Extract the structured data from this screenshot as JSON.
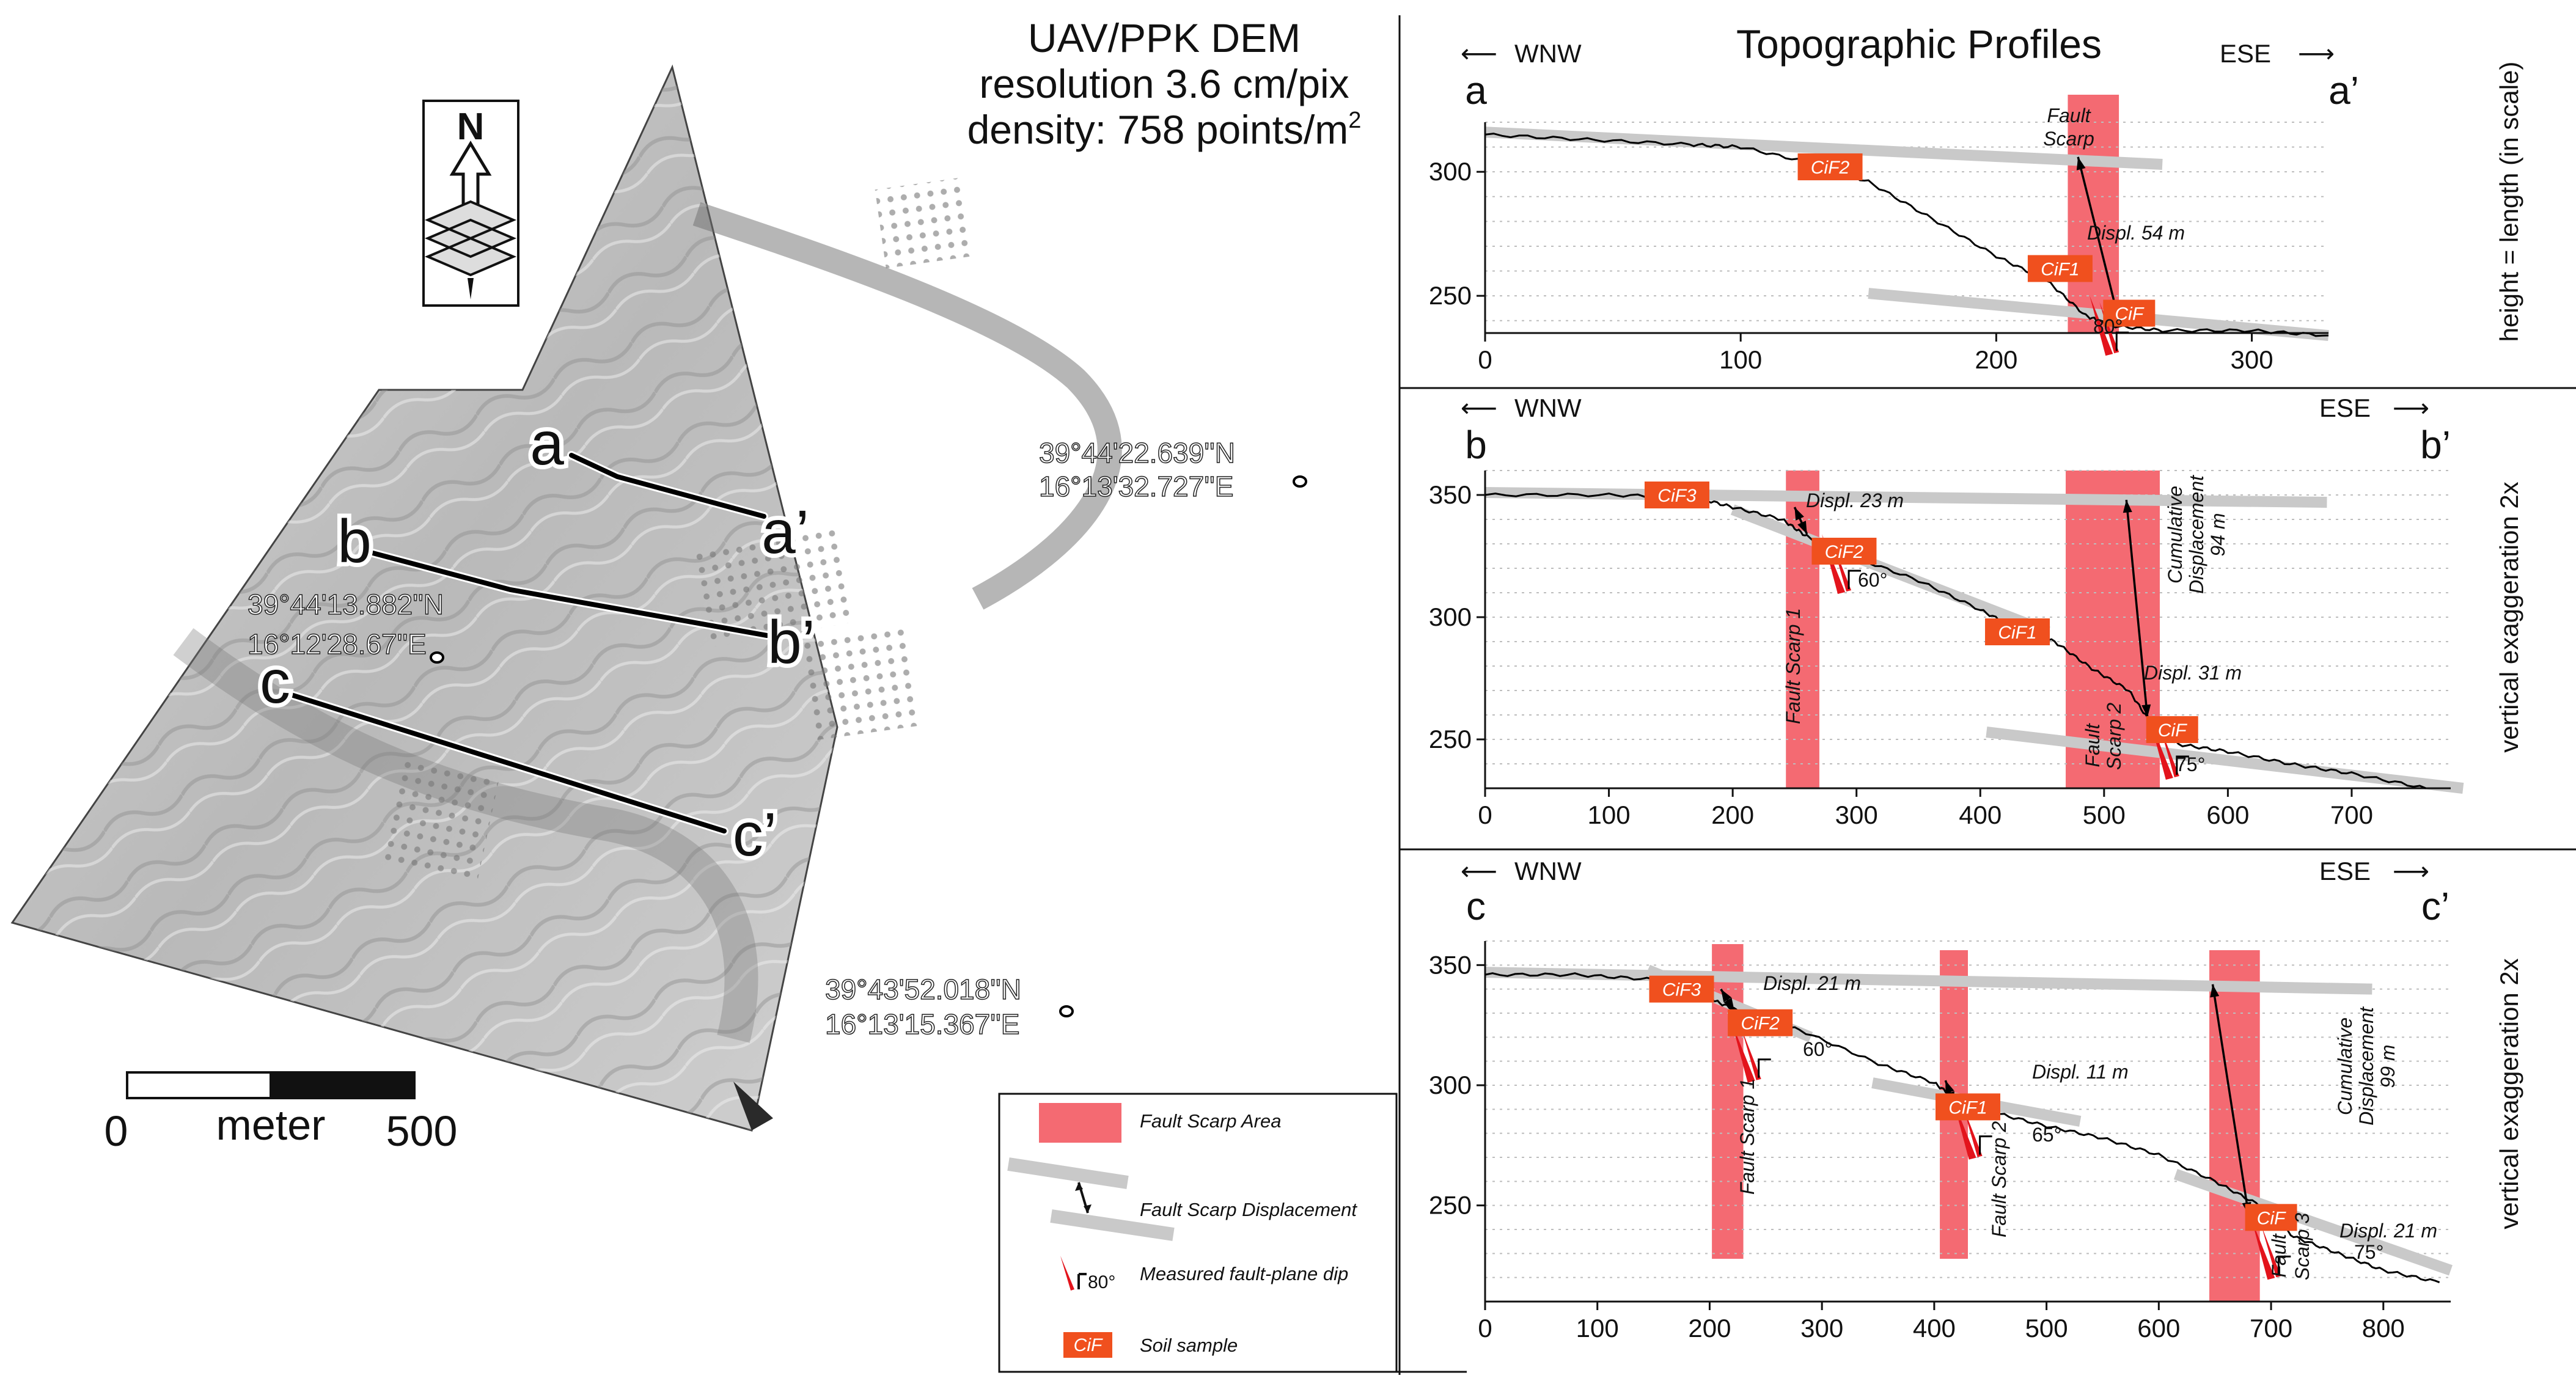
{
  "map": {
    "title_lines": [
      "UAV/PPK DEM",
      "resolution 3.6 cm/pix",
      "density: 758 points/m"
    ],
    "title_superscript": "2",
    "section_labels": [
      "a",
      "a’",
      "b",
      "b’",
      "c",
      "c’"
    ],
    "coordinates": [
      {
        "lat": "39°44'22.639''N",
        "lon": "16°13'32.727''E"
      },
      {
        "lat": "39°44'13.882''N",
        "lon": "16°12'28.67''E"
      },
      {
        "lat": "39°43'52.018''N",
        "lon": "16°13'15.367''E"
      }
    ],
    "north_label": "N",
    "scalebar": {
      "start": "0",
      "unit": "meter",
      "end": "500"
    }
  },
  "profiles_title": "Topographic Profiles",
  "direction": {
    "west": "WNW",
    "east": "ESE"
  },
  "side_labels": {
    "a": "height = length (in scale)",
    "b": "vertical exaggeration 2x",
    "c": "vertical exaggeration 2x"
  },
  "legend": {
    "items": [
      {
        "label": "Fault Scarp Area",
        "color": "#f46a72"
      },
      {
        "label": "Fault Scarp Displacement"
      },
      {
        "label": "Measured fault-plane dip",
        "value": "80°"
      },
      {
        "label": "Soil sample",
        "tag": "CiF",
        "color": "#f0501e"
      }
    ]
  },
  "profiles": {
    "a": {
      "label_start": "a",
      "label_end": "a’",
      "annotations": {
        "scarp": [
          "Fault",
          "Scarp"
        ],
        "displ": "Displ. 54 m",
        "dip": "80°"
      },
      "samples": [
        "CiF2",
        "CiF1",
        "CiF"
      ]
    },
    "b": {
      "label_start": "b",
      "label_end": "b’",
      "annotations": {
        "displ1": "Displ. 23 m",
        "dip1": "60°",
        "scarp1": "Fault Scarp 1",
        "scarp2": [
          "Fault",
          "Scarp 2"
        ],
        "cumulative": [
          "Cumulative",
          "Displacement",
          "94 m"
        ],
        "displ2": "Displ. 31 m",
        "dip2": "75°"
      },
      "samples": [
        "CiF3",
        "CiF2",
        "CiF1",
        "CiF"
      ]
    },
    "c": {
      "label_start": "c",
      "label_end": "c’",
      "annotations": {
        "displ1": "Displ. 21 m",
        "dip1": "60°",
        "scarp1": "Fault Scarp 1",
        "displ2": "Displ. 11 m",
        "dip2": "65°",
        "scarp2": "Fault Scarp 2",
        "scarp3": [
          "Fault",
          "Scarp 3"
        ],
        "cumulative": [
          "Cumulative",
          "Displacement",
          "99 m"
        ],
        "displ3": "Displ. 21 m",
        "dip3": "75°"
      },
      "samples": [
        "CiF3",
        "CiF2",
        "CiF1",
        "CiF"
      ]
    }
  },
  "chart_data": [
    {
      "type": "line",
      "name": "profile a–a’",
      "x": [
        0,
        40,
        80,
        100,
        130,
        150,
        175,
        200,
        220,
        235,
        245,
        265,
        300,
        330
      ],
      "y": [
        315,
        313,
        311,
        310,
        303,
        296,
        281,
        266,
        256,
        242,
        238,
        236,
        236,
        234
      ],
      "xlim": [
        0,
        330
      ],
      "ylim": [
        235,
        320
      ],
      "yticks": [
        250,
        300
      ],
      "xticks": [
        0,
        100,
        200,
        300
      ],
      "samples": [
        {
          "label": "CiF2",
          "x": 135,
          "y": 302
        },
        {
          "label": "CiF1",
          "x": 225,
          "y": 261
        },
        {
          "label": "CiF",
          "x": 252,
          "y": 243
        }
      ]
    },
    {
      "type": "line",
      "name": "profile b–b’",
      "x": [
        0,
        100,
        170,
        200,
        240,
        260,
        290,
        350,
        400,
        430,
        460,
        490,
        520,
        540,
        560,
        600,
        650,
        700,
        760
      ],
      "y": [
        350,
        350,
        349,
        345,
        340,
        333,
        326,
        315,
        303,
        295,
        290,
        279,
        270,
        255,
        248,
        245,
        240,
        236,
        230
      ],
      "xlim": [
        0,
        780
      ],
      "ylim": [
        230,
        360
      ],
      "yticks": [
        250,
        300,
        350
      ],
      "xticks": [
        0,
        100,
        200,
        300,
        400,
        500,
        600,
        700
      ],
      "samples": [
        {
          "label": "CiF3",
          "x": 155,
          "y": 350
        },
        {
          "label": "CiF2",
          "x": 290,
          "y": 327
        },
        {
          "label": "CiF1",
          "x": 430,
          "y": 294
        },
        {
          "label": "CiF",
          "x": 555,
          "y": 254
        }
      ]
    },
    {
      "type": "line",
      "name": "profile c–c’",
      "x": [
        0,
        80,
        150,
        190,
        205,
        230,
        280,
        350,
        400,
        420,
        450,
        500,
        550,
        600,
        650,
        690,
        720,
        760,
        800,
        850
      ],
      "y": [
        346,
        346,
        344,
        341,
        335,
        330,
        323,
        309,
        301,
        294,
        289,
        283,
        278,
        271,
        260,
        250,
        237,
        230,
        223,
        218
      ],
      "xlim": [
        0,
        860
      ],
      "ylim": [
        210,
        360
      ],
      "yticks": [
        250,
        300,
        350
      ],
      "xticks": [
        0,
        100,
        200,
        300,
        400,
        500,
        600,
        700,
        800
      ],
      "samples": [
        {
          "label": "CiF3",
          "x": 175,
          "y": 340
        },
        {
          "label": "CiF2",
          "x": 245,
          "y": 326
        },
        {
          "label": "CiF1",
          "x": 430,
          "y": 291
        },
        {
          "label": "CiF",
          "x": 700,
          "y": 245
        }
      ]
    }
  ]
}
